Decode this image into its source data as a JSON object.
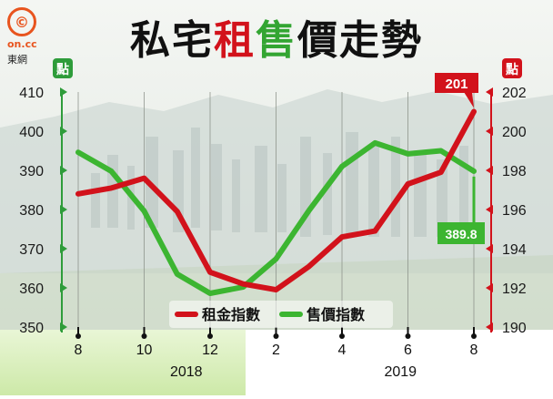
{
  "title": {
    "part1": "私宅",
    "part2": "租",
    "part3": "售",
    "part4": "價走勢"
  },
  "logo": {
    "glyph": "©",
    "text": "on.cc",
    "sub": "東網"
  },
  "left_unit": "點",
  "right_unit": "點",
  "left_ticks": [
    "410",
    "400",
    "390",
    "380",
    "370",
    "360",
    "350"
  ],
  "right_ticks": [
    "202",
    "200",
    "198",
    "196",
    "194",
    "192",
    "190"
  ],
  "x_ticks": [
    "8",
    "10",
    "12",
    "2",
    "4",
    "6",
    "8"
  ],
  "years": [
    "2018",
    "2019"
  ],
  "callouts": {
    "rent": "201",
    "sale": "389.8"
  },
  "legend": {
    "rent": "租金指數",
    "sale": "售價指數"
  },
  "colors": {
    "rent": "#d2121b",
    "sale": "#3cb531",
    "left_axis": "#2e9c3a",
    "right_axis": "#d2121b"
  },
  "chart_data": {
    "type": "line",
    "x": [
      "2018-08",
      "2018-09",
      "2018-10",
      "2018-11",
      "2018-12",
      "2019-01",
      "2019-02",
      "2019-03",
      "2019-04",
      "2019-05",
      "2019-06",
      "2019-07",
      "2019-08"
    ],
    "x_tick_labels": [
      "8",
      "10",
      "12",
      "2",
      "4",
      "6",
      "8"
    ],
    "group_labels": [
      "2018",
      "2019"
    ],
    "left_axis": {
      "unit": "點",
      "ylim": [
        350,
        410
      ]
    },
    "right_axis": {
      "unit": "點",
      "ylim": [
        190,
        202
      ]
    },
    "series": [
      {
        "name": "租金指數",
        "axis": "right",
        "color": "#d2121b",
        "values": [
          196.8,
          197.1,
          197.6,
          195.9,
          192.8,
          192.2,
          191.9,
          193.1,
          194.6,
          194.9,
          197.3,
          197.9,
          201
        ]
      },
      {
        "name": "售價指數",
        "axis": "left",
        "color": "#3cb531",
        "values": [
          394.6,
          389.8,
          379.6,
          363.5,
          358.6,
          360.2,
          367.4,
          379.8,
          391.0,
          397.0,
          394.2,
          395.0,
          389.8
        ]
      }
    ],
    "annotations": [
      {
        "series": "租金指數",
        "label": "201"
      },
      {
        "series": "售價指數",
        "label": "389.8"
      }
    ],
    "grid": true,
    "legend_position": "bottom-center"
  }
}
